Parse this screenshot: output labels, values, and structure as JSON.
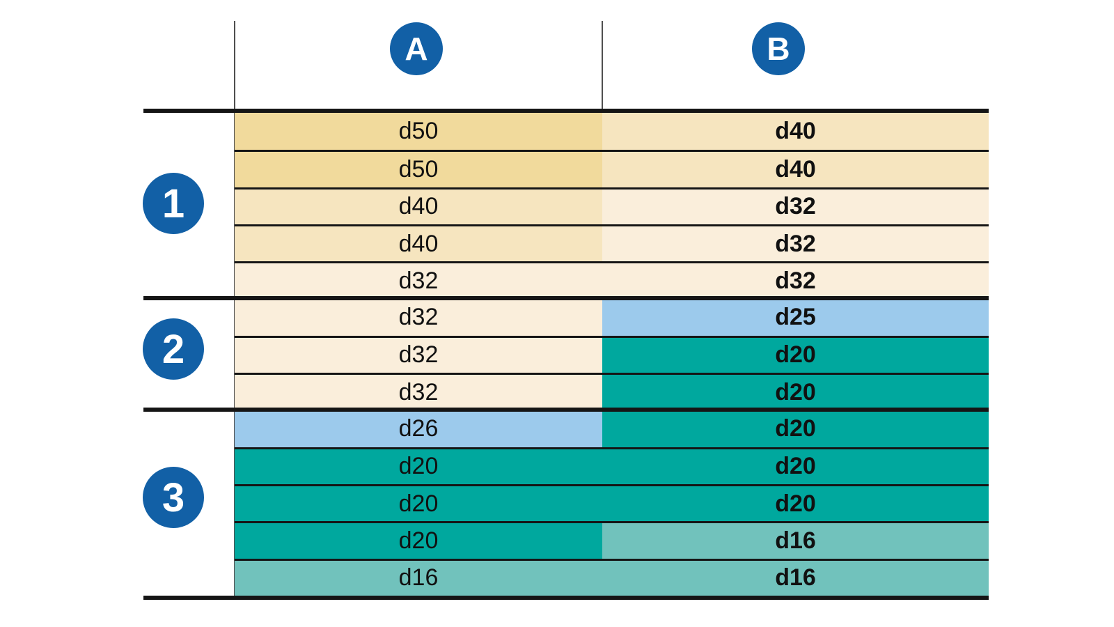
{
  "figure": {
    "type": "diameter-lookup-table",
    "column_headers": [
      {
        "id": "A",
        "label": "A"
      },
      {
        "id": "B",
        "label": "B"
      }
    ],
    "colors": {
      "gold": "#f1da9c",
      "tan": "#f6e5bf",
      "cream": "#faeedb",
      "blue": "#9ccaec",
      "teal": "#00a89e",
      "teal_light": "#71c2bc",
      "badge_blue": "#1260a6",
      "rule_black": "#151515"
    },
    "row_groups": [
      {
        "label": "1",
        "rows": [
          {
            "a": {
              "text": "d50",
              "color_key": "gold"
            },
            "b": {
              "text": "d40",
              "color_key": "tan"
            }
          },
          {
            "a": {
              "text": "d50",
              "color_key": "gold"
            },
            "b": {
              "text": "d40",
              "color_key": "tan"
            }
          },
          {
            "a": {
              "text": "d40",
              "color_key": "tan"
            },
            "b": {
              "text": "d32",
              "color_key": "cream"
            }
          },
          {
            "a": {
              "text": "d40",
              "color_key": "tan"
            },
            "b": {
              "text": "d32",
              "color_key": "cream"
            }
          },
          {
            "a": {
              "text": "d32",
              "color_key": "cream"
            },
            "b": {
              "text": "d32",
              "color_key": "cream"
            }
          }
        ]
      },
      {
        "label": "2",
        "rows": [
          {
            "a": {
              "text": "d32",
              "color_key": "cream"
            },
            "b": {
              "text": "d25",
              "color_key": "blue"
            }
          },
          {
            "a": {
              "text": "d32",
              "color_key": "cream"
            },
            "b": {
              "text": "d20",
              "color_key": "teal"
            }
          },
          {
            "a": {
              "text": "d32",
              "color_key": "cream"
            },
            "b": {
              "text": "d20",
              "color_key": "teal"
            }
          }
        ]
      },
      {
        "label": "3",
        "rows": [
          {
            "a": {
              "text": "d26",
              "color_key": "blue"
            },
            "b": {
              "text": "d20",
              "color_key": "teal"
            }
          },
          {
            "a": {
              "text": "d20",
              "color_key": "teal"
            },
            "b": {
              "text": "d20",
              "color_key": "teal"
            }
          },
          {
            "a": {
              "text": "d20",
              "color_key": "teal"
            },
            "b": {
              "text": "d20",
              "color_key": "teal"
            }
          },
          {
            "a": {
              "text": "d20",
              "color_key": "teal"
            },
            "b": {
              "text": "d16",
              "color_key": "teal_light"
            }
          },
          {
            "a": {
              "text": "d16",
              "color_key": "teal_light"
            },
            "b": {
              "text": "d16",
              "color_key": "teal_light"
            }
          }
        ]
      }
    ]
  }
}
